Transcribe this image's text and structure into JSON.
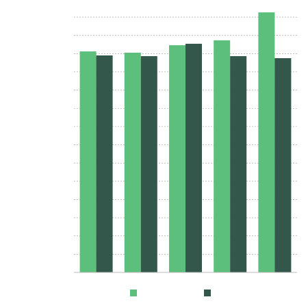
{
  "chart_data": {
    "type": "bar",
    "categories": [
      null,
      null,
      null,
      null,
      null
    ],
    "series": [
      {
        "color": "#5dbf7c",
        "values": [
          12.12,
          12.05,
          12.46,
          12.73,
          14.26
        ]
      },
      {
        "color": "#33574a",
        "values": [
          11.9,
          11.86,
          12.54,
          11.86,
          11.75
        ]
      }
    ],
    "ylim": [
      0,
      14.3
    ],
    "yticks": [
      0,
      1,
      2,
      3,
      4,
      5,
      6,
      7,
      8,
      9,
      10,
      11,
      12,
      13,
      14
    ],
    "grid": true
  }
}
